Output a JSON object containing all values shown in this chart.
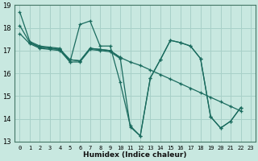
{
  "xlabel": "Humidex (Indice chaleur)",
  "bg_color": "#c8e8e0",
  "grid_color": "#a8d0c8",
  "line_color": "#1a6b5e",
  "xlim": [
    -0.5,
    23.5
  ],
  "ylim": [
    13,
    19
  ],
  "xtick_vals": [
    0,
    1,
    2,
    3,
    4,
    5,
    6,
    7,
    8,
    9,
    10,
    11,
    12,
    13,
    14,
    15,
    16,
    17,
    18,
    19,
    20,
    21,
    22,
    23
  ],
  "ytick_vals": [
    13,
    14,
    15,
    16,
    17,
    18,
    19
  ],
  "line1_x": [
    0,
    1,
    2,
    3,
    4,
    5,
    6,
    7,
    8,
    9,
    10,
    11,
    12,
    13,
    14,
    15,
    16,
    17,
    18,
    19,
    20,
    21,
    22
  ],
  "line1_y": [
    18.7,
    17.4,
    17.2,
    17.15,
    17.1,
    16.5,
    18.15,
    18.3,
    17.2,
    17.2,
    15.6,
    13.7,
    13.25,
    15.8,
    16.6,
    17.45,
    17.35,
    17.2,
    16.65,
    14.1,
    13.6,
    13.9,
    14.5
  ],
  "line2_x": [
    0,
    1,
    2,
    3,
    4,
    5,
    6,
    7,
    8,
    9,
    10,
    11,
    12,
    13,
    14,
    15,
    16,
    17,
    18,
    19,
    20,
    21,
    22
  ],
  "line2_y": [
    18.1,
    17.35,
    17.15,
    17.1,
    17.05,
    16.6,
    16.55,
    17.1,
    17.05,
    17.0,
    16.7,
    16.5,
    16.35,
    16.15,
    15.95,
    15.75,
    15.55,
    15.35,
    15.15,
    14.95,
    14.75,
    14.55,
    14.35
  ],
  "line3_x": [
    1,
    2,
    3,
    4,
    5,
    6,
    7,
    8,
    9,
    10,
    11,
    12,
    13,
    14,
    15,
    16,
    17,
    18,
    19,
    20,
    21,
    22
  ],
  "line3_y": [
    17.35,
    17.15,
    17.1,
    17.05,
    16.6,
    16.55,
    17.1,
    17.05,
    17.0,
    16.7,
    13.65,
    13.25,
    15.8,
    16.6,
    17.45,
    17.35,
    17.2,
    16.65,
    14.1,
    13.6,
    13.9,
    14.5
  ],
  "line4_x": [
    0,
    1,
    2,
    3,
    4,
    5,
    6,
    7,
    8,
    9,
    10
  ],
  "line4_y": [
    17.75,
    17.3,
    17.1,
    17.05,
    17.0,
    16.5,
    16.5,
    17.05,
    17.0,
    16.95,
    16.65
  ]
}
